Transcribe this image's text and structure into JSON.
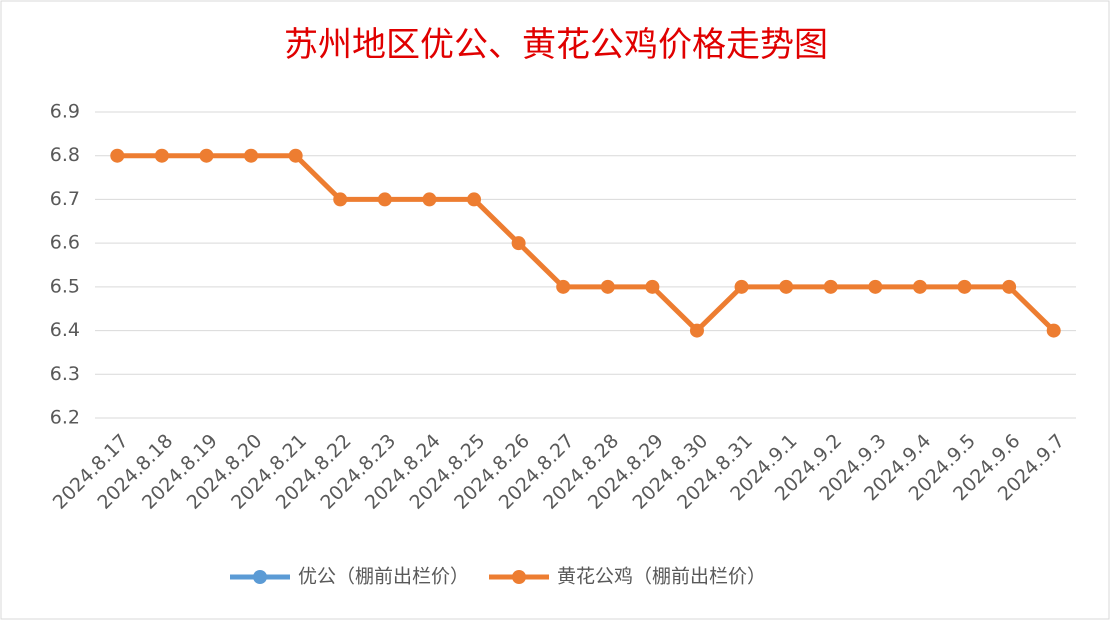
{
  "chart_data": {
    "type": "line",
    "title": "苏州地区优公、黄花公鸡价格走势图",
    "categories": [
      "2024.8.17",
      "2024.8.18",
      "2024.8.19",
      "2024.8.20",
      "2024.8.21",
      "2024.8.22",
      "2024.8.23",
      "2024.8.24",
      "2024.8.25",
      "2024.8.26",
      "2024.8.27",
      "2024.8.28",
      "2024.8.29",
      "2024.8.30",
      "2024.8.31",
      "2024.9.1",
      "2024.9.2",
      "2024.9.3",
      "2024.9.4",
      "2024.9.5",
      "2024.9.6",
      "2024.9.7"
    ],
    "series": [
      {
        "name": "优公（棚前出栏价）",
        "color": "#5b9bd5",
        "values": [
          null,
          null,
          null,
          null,
          null,
          null,
          null,
          null,
          null,
          null,
          null,
          null,
          null,
          null,
          null,
          null,
          null,
          null,
          null,
          null,
          null,
          null
        ]
      },
      {
        "name": "黄花公鸡（棚前出栏价）",
        "color": "#ed7d31",
        "values": [
          6.8,
          6.8,
          6.8,
          6.8,
          6.8,
          6.7,
          6.7,
          6.7,
          6.7,
          6.6,
          6.5,
          6.5,
          6.5,
          6.4,
          6.5,
          6.5,
          6.5,
          6.5,
          6.5,
          6.5,
          6.5,
          6.4
        ]
      }
    ],
    "ylim": [
      6.2,
      6.9
    ],
    "yticks": [
      6.2,
      6.3,
      6.4,
      6.5,
      6.6,
      6.7,
      6.8,
      6.9
    ],
    "grid": true,
    "legend": "bottom"
  }
}
